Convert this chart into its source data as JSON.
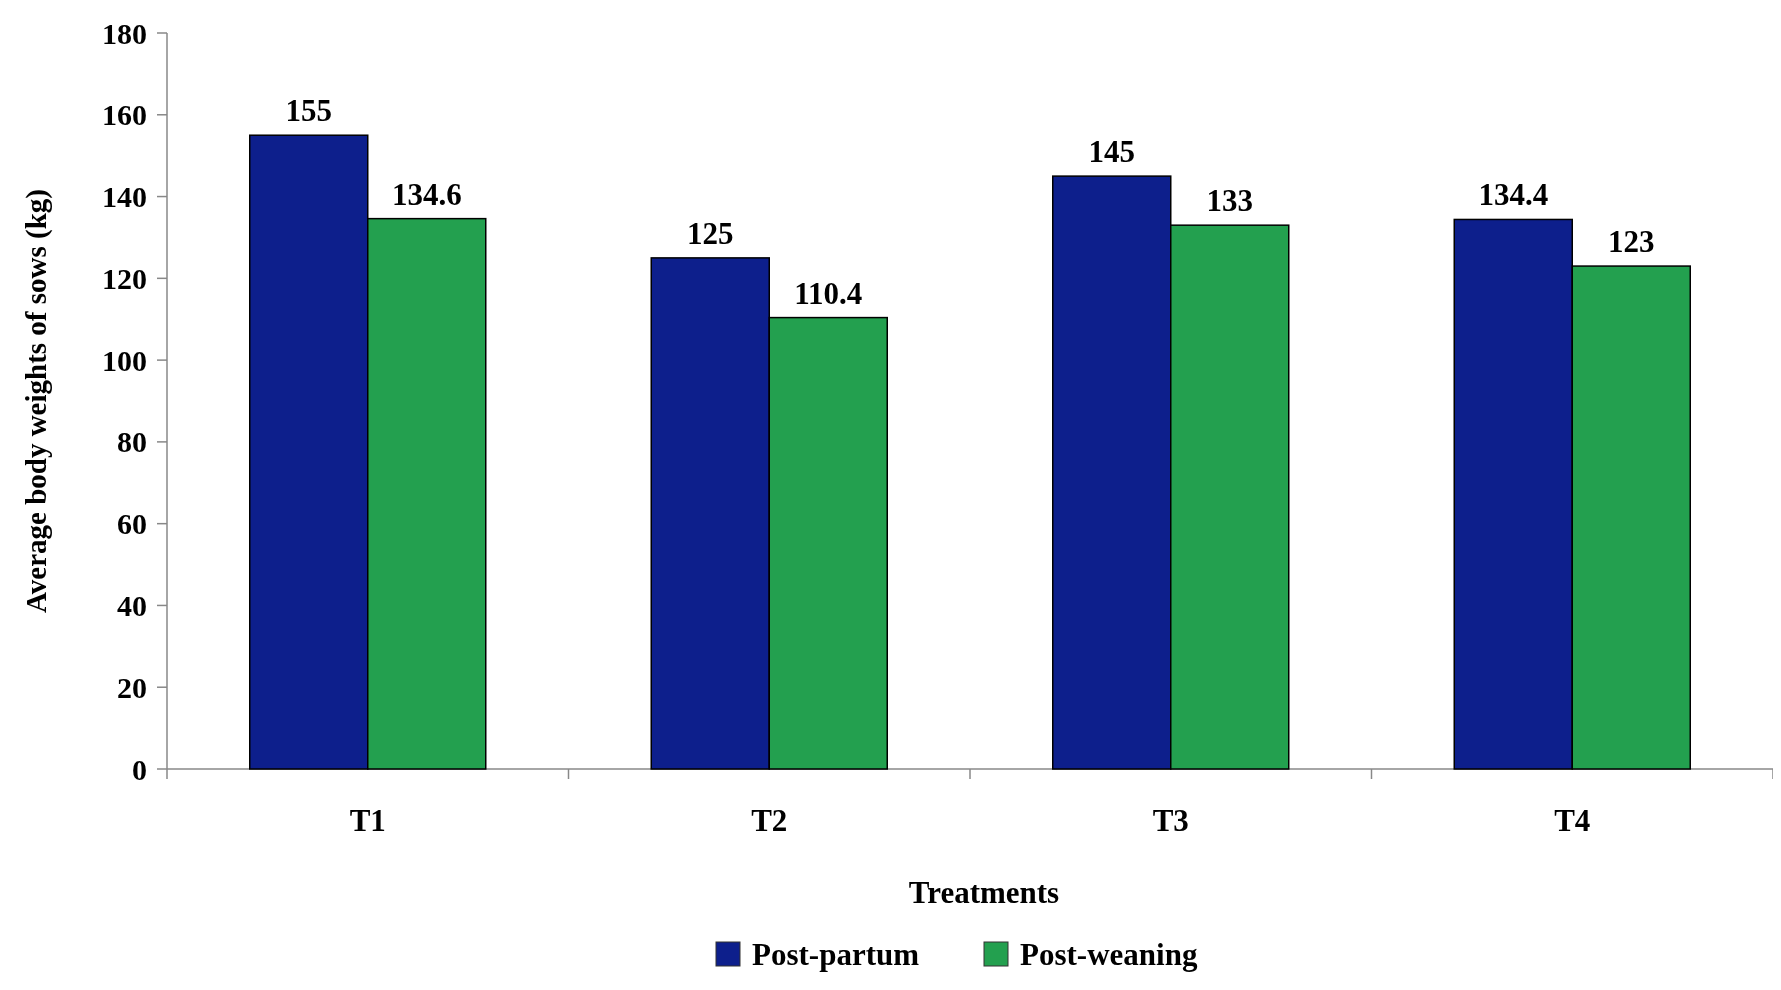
{
  "chart_data": {
    "type": "bar",
    "xlabel": "Treatments",
    "ylabel": "Average body weights of sows (kg)",
    "categories": [
      "T1",
      "T2",
      "T3",
      "T4"
    ],
    "series": [
      {
        "name": "Post-partum",
        "color": "#0d1f8c",
        "values": [
          155,
          125,
          145,
          134.4
        ]
      },
      {
        "name": "Post-weaning",
        "color": "#23a04f",
        "values": [
          134.6,
          110.4,
          133,
          123
        ]
      }
    ],
    "ylim": [
      0,
      180
    ],
    "yticks": [
      0,
      20,
      40,
      60,
      80,
      100,
      120,
      140,
      160,
      180
    ],
    "data_labels": true,
    "grid": false,
    "legend": "bottom"
  }
}
